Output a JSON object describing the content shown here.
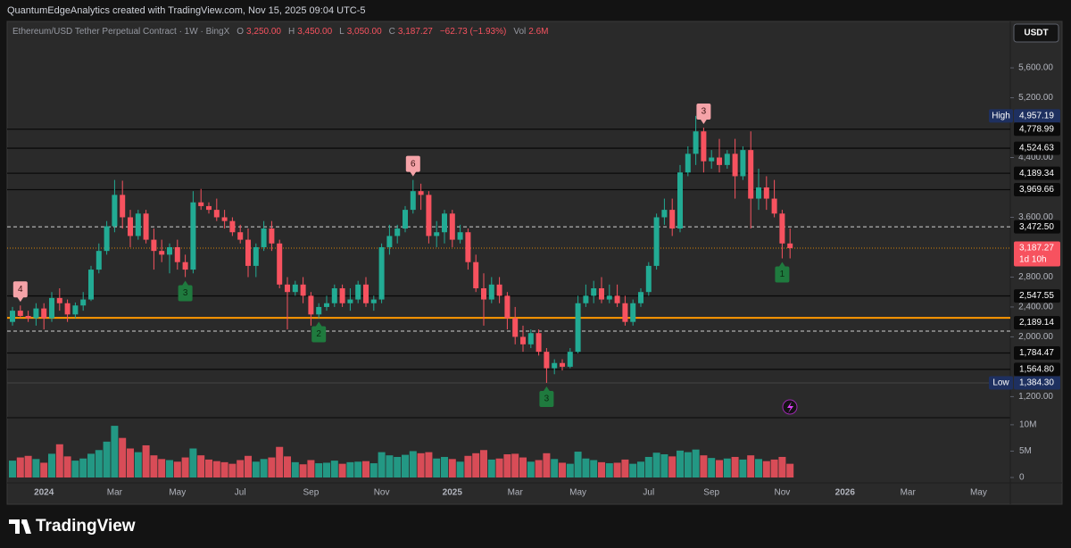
{
  "header": {
    "credit": "QuantumEdgeAnalytics created with TradingView.com, Nov 15, 2025 09:04 UTC-5",
    "unit": "USDT"
  },
  "footer": {
    "brand": "TradingView"
  },
  "chart_data": {
    "type": "candlestick",
    "title": "Ethereum/USD Tether Perpetual Contract · 1W · BingX",
    "legend": [
      {
        "key": "O",
        "value": "3,250.00"
      },
      {
        "key": "H",
        "value": "3,450.00"
      },
      {
        "key": "L",
        "value": "3,050.00"
      },
      {
        "key": "C",
        "value": "3,187.27"
      },
      {
        "key": "−62.73 (−1.93%)"
      },
      {
        "key": "Vol",
        "value": "2.6M"
      }
    ],
    "colors": {
      "up": "#22ab94",
      "down": "#f7525f"
    },
    "categories": [
      null,
      null,
      null,
      null,
      "2024",
      null,
      null,
      null,
      null,
      null,
      null,
      null,
      null,
      "Mar",
      null,
      null,
      null,
      null,
      null,
      null,
      null,
      "May",
      null,
      null,
      null,
      null,
      null,
      null,
      null,
      "Jul",
      null,
      null,
      null,
      null,
      null,
      null,
      null,
      null,
      "Sep",
      null,
      null,
      null,
      null,
      null,
      null,
      null,
      null,
      "Nov",
      null,
      null,
      null,
      null,
      null,
      null,
      null,
      null,
      "2025",
      null,
      null,
      null,
      null,
      null,
      null,
      null,
      "Mar",
      null,
      null,
      null,
      null,
      null,
      null,
      null,
      "May",
      null,
      null,
      null,
      null,
      null,
      null,
      null,
      null,
      "Jul",
      null,
      null,
      null,
      null,
      null,
      null,
      null,
      "Sep",
      null,
      null,
      null,
      null,
      null,
      null,
      null,
      null,
      "Nov",
      null,
      null,
      null,
      null,
      null,
      null,
      null,
      "2026",
      null,
      null,
      null,
      null,
      null,
      null,
      null,
      "Mar",
      null,
      null,
      null,
      null,
      null,
      null,
      null,
      null,
      "May",
      null,
      null,
      null,
      null
    ],
    "open": [
      2200,
      2350,
      2280,
      2250,
      2380,
      2250,
      2520,
      2450,
      2300,
      2420,
      2500,
      2900,
      3150,
      3480,
      3900,
      3600,
      3350,
      3650,
      3300,
      3150,
      3100,
      3200,
      3000,
      2900,
      3800,
      3750,
      3700,
      3600,
      3550,
      3400,
      3300,
      2950,
      3200,
      3450,
      3250,
      2700,
      2600,
      2700,
      2550,
      2300,
      2400,
      2450,
      2650,
      2450,
      2500,
      2700,
      2450,
      2500,
      3200,
      3350,
      3450,
      3700,
      3950,
      3900,
      3350,
      3400,
      3650,
      3300,
      3400,
      3000,
      2650,
      2500,
      2700,
      2550,
      2250,
      2000,
      1900,
      2050,
      1800,
      1580,
      1650,
      1600,
      1800,
      2450,
      2550,
      2650,
      2500,
      2550,
      2450,
      2200,
      2450,
      2600,
      2950,
      3600,
      3700,
      3450,
      4200,
      4450,
      4750,
      4350,
      4400,
      4300,
      4450,
      4150,
      4500,
      3850,
      4000,
      3850,
      3650,
      3250,
      null,
      null,
      null,
      null,
      null,
      null,
      null,
      null,
      null,
      null,
      null,
      null,
      null,
      null,
      null,
      null,
      null,
      null,
      null,
      null,
      null,
      null,
      null,
      null,
      null,
      null,
      null,
      null
    ],
    "high": [
      2400,
      2420,
      2350,
      2450,
      2450,
      2600,
      2650,
      2500,
      2460,
      2600,
      2950,
      3250,
      3550,
      4100,
      4090,
      3700,
      3700,
      3700,
      3450,
      3300,
      3250,
      3300,
      3100,
      3950,
      3980,
      3800,
      3850,
      3700,
      3600,
      3500,
      3450,
      3250,
      3550,
      3550,
      3300,
      2800,
      2750,
      2800,
      2600,
      2450,
      2550,
      2700,
      2700,
      2650,
      2750,
      2800,
      2550,
      3250,
      3500,
      3500,
      3750,
      4100,
      4050,
      3950,
      3550,
      3700,
      3700,
      3500,
      3450,
      3100,
      2850,
      2800,
      2800,
      2600,
      2400,
      2150,
      2100,
      2100,
      1850,
      1700,
      1700,
      1850,
      2550,
      2700,
      2750,
      2800,
      2700,
      2700,
      2550,
      2500,
      2650,
      3000,
      3650,
      3850,
      3850,
      4300,
      4550,
      4957.19,
      4800,
      4500,
      4650,
      4500,
      4650,
      4550,
      4750,
      4250,
      4150,
      4100,
      3700,
      3450,
      null,
      null,
      null,
      null,
      null,
      null,
      null,
      null,
      null,
      null,
      null,
      null,
      null,
      null,
      null,
      null,
      null,
      null,
      null,
      null,
      null,
      null,
      null,
      null,
      null,
      null,
      null,
      null
    ],
    "low": [
      2150,
      2250,
      2200,
      2150,
      2100,
      2200,
      2350,
      2200,
      2250,
      2350,
      2480,
      2850,
      3100,
      3400,
      3450,
      3200,
      3300,
      3250,
      2900,
      3000,
      2850,
      2900,
      2800,
      2850,
      3700,
      3650,
      3550,
      3450,
      3350,
      3250,
      2800,
      2800,
      3150,
      3150,
      2650,
      2100,
      2550,
      2450,
      2150,
      2250,
      2350,
      2400,
      2400,
      2350,
      2450,
      2400,
      2350,
      2450,
      3100,
      3250,
      3400,
      3650,
      3700,
      3250,
      3200,
      3250,
      3200,
      3250,
      2900,
      2600,
      2150,
      2450,
      2450,
      2100,
      1900,
      1800,
      1850,
      1750,
      1384.3,
      1500,
      1550,
      1580,
      1780,
      2400,
      2450,
      2450,
      2450,
      2400,
      2150,
      2150,
      2400,
      2550,
      2900,
      3500,
      3350,
      3400,
      4150,
      4300,
      4200,
      4250,
      4200,
      4250,
      3850,
      4100,
      3450,
      3700,
      3700,
      3600,
      3050,
      3050,
      null,
      null,
      null,
      null,
      null,
      null,
      null,
      null,
      null,
      null,
      null,
      null,
      null,
      null,
      null,
      null,
      null,
      null,
      null,
      null,
      null,
      null,
      null,
      null,
      null,
      null,
      null,
      null
    ],
    "close": [
      2350,
      2280,
      2250,
      2380,
      2250,
      2520,
      2450,
      2300,
      2420,
      2500,
      2900,
      3150,
      3480,
      3900,
      3600,
      3350,
      3650,
      3300,
      3150,
      3100,
      3200,
      3000,
      2900,
      3800,
      3750,
      3700,
      3600,
      3550,
      3400,
      3300,
      2950,
      3200,
      3450,
      3250,
      2700,
      2600,
      2700,
      2550,
      2300,
      2400,
      2450,
      2650,
      2450,
      2500,
      2700,
      2450,
      2500,
      3200,
      3350,
      3450,
      3700,
      3950,
      3900,
      3350,
      3400,
      3650,
      3300,
      3400,
      3000,
      2650,
      2500,
      2700,
      2550,
      2250,
      2000,
      1900,
      2050,
      1800,
      1580,
      1650,
      1600,
      1800,
      2450,
      2550,
      2650,
      2500,
      2550,
      2450,
      2200,
      2450,
      2600,
      2950,
      3600,
      3700,
      3450,
      4200,
      4450,
      4750,
      4350,
      4400,
      4300,
      4450,
      4150,
      4500,
      3850,
      4000,
      3850,
      3650,
      3250,
      3187.27,
      null,
      null,
      null,
      null,
      null,
      null,
      null,
      null,
      null,
      null,
      null,
      null,
      null,
      null,
      null,
      null,
      null,
      null,
      null,
      null,
      null,
      null,
      null,
      null,
      null,
      null,
      null,
      null
    ],
    "volume": [
      3200000.0,
      3800000.0,
      4100000.0,
      3500000.0,
      2800000.0,
      4500000.0,
      6300000.0,
      4000000.0,
      3200000.0,
      3600000.0,
      4500000.0,
      5200000.0,
      6800000.0,
      9800000.0,
      7500000.0,
      5500000.0,
      4800000.0,
      6100000.0,
      4200000.0,
      3500000.0,
      3300000.0,
      3000000.0,
      3800000.0,
      5500000.0,
      4200000.0,
      3400000.0,
      3100000.0,
      2900000.0,
      2600000.0,
      3300000.0,
      4100000.0,
      3000000.0,
      3500000.0,
      3800000.0,
      5800000.0,
      4000000.0,
      2900000.0,
      2500000.0,
      3300000.0,
      2700000.0,
      2800000.0,
      3200000.0,
      2600000.0,
      2900000.0,
      3000000.0,
      3100000.0,
      2700000.0,
      4800000.0,
      4200000.0,
      3900000.0,
      4300000.0,
      5000000.0,
      4600000.0,
      4800000.0,
      3600000.0,
      3900000.0,
      3500000.0,
      3000000.0,
      4100000.0,
      4600000.0,
      5200000.0,
      3400000.0,
      3600000.0,
      4400000.0,
      4500000.0,
      3800000.0,
      3000000.0,
      3300000.0,
      4600000.0,
      3500000.0,
      2800000.0,
      2600000.0,
      4900000.0,
      3600000.0,
      3300000.0,
      2900000.0,
      2700000.0,
      2800000.0,
      3400000.0,
      2600000.0,
      3000000.0,
      3900000.0,
      4700000.0,
      4400000.0,
      4000000.0,
      5100000.0,
      4800000.0,
      5300000.0,
      4200000.0,
      3700000.0,
      3300000.0,
      3600000.0,
      3900000.0,
      3400000.0,
      4200000.0,
      3500000.0,
      3100000.0,
      3400000.0,
      3900000.0,
      2600000.0,
      null,
      null,
      null,
      null,
      null,
      null,
      null,
      null,
      null,
      null,
      null,
      null,
      null,
      null,
      null,
      null,
      null,
      null,
      null,
      null,
      null,
      null,
      null,
      null,
      null,
      null,
      null,
      null
    ],
    "ylim": [
      930,
      6150
    ],
    "yticks": [
      {
        "value": 5600,
        "label": "5,600.00"
      },
      {
        "value": 5200,
        "label": "5,200.00"
      },
      {
        "value": 4400,
        "label": "4,400.00"
      },
      {
        "value": 3600,
        "label": "3,600.00"
      },
      {
        "value": 2800,
        "label": "2,800.00"
      },
      {
        "value": 2400,
        "label": "2,400.00"
      },
      {
        "value": 2000,
        "label": "2,000.00"
      },
      {
        "value": 1200,
        "label": "1,200.00"
      }
    ],
    "volume_ylim": [
      0,
      11000000
    ],
    "volume_yticks": [
      {
        "value": 10000000,
        "label": "10M"
      },
      {
        "value": 5000000,
        "label": "5M"
      },
      0
    ],
    "levels": [
      {
        "value": 4957.19,
        "label": "4,957.19",
        "tag": "High",
        "box": "blue"
      },
      {
        "value": 4778.99,
        "label": "4,778.99",
        "style": "solid",
        "box": "dark"
      },
      {
        "value": 4524.63,
        "label": "4,524.63",
        "style": "solid",
        "box": "dark"
      },
      {
        "value": 4189.34,
        "label": "4,189.34",
        "style": "solid",
        "box": "dark"
      },
      {
        "value": 3969.66,
        "label": "3,969.66",
        "style": "solid",
        "box": "dark"
      },
      {
        "value": 3472.5,
        "label": "3,472.50",
        "style": "dashed",
        "box": "dark"
      },
      {
        "value": 3187.27,
        "label": "3,187.27",
        "sub": "1d 10h",
        "style": "dotted",
        "box": "red"
      },
      {
        "value": 2547.55,
        "label": "2,547.55",
        "style": "solid",
        "box": "dark"
      },
      {
        "value": 2255,
        "style": "orange"
      },
      {
        "value": 2189.14,
        "label": "2,189.14",
        "box": "dark"
      },
      {
        "value": 2077,
        "style": "dashed"
      },
      {
        "value": 1784.47,
        "label": "1,784.47",
        "style": "solid",
        "box": "dark"
      },
      {
        "value": 1564.8,
        "label": "1,564.80",
        "style": "solid",
        "box": "dark"
      },
      {
        "value": 1384.3,
        "label": "1,384.30",
        "tag": "Low",
        "style": "faint",
        "box": "blue"
      }
    ],
    "markers": [
      {
        "index": 1,
        "label": "4",
        "position": "above"
      },
      {
        "index": 22,
        "label": "3",
        "position": "below"
      },
      {
        "index": 39,
        "label": "2",
        "position": "below"
      },
      {
        "index": 51,
        "label": "6",
        "position": "above"
      },
      {
        "index": 68,
        "label": "3",
        "position": "below"
      },
      {
        "index": 88,
        "label": "3",
        "position": "above"
      },
      {
        "index": 98,
        "label": "1",
        "position": "below"
      }
    ]
  }
}
